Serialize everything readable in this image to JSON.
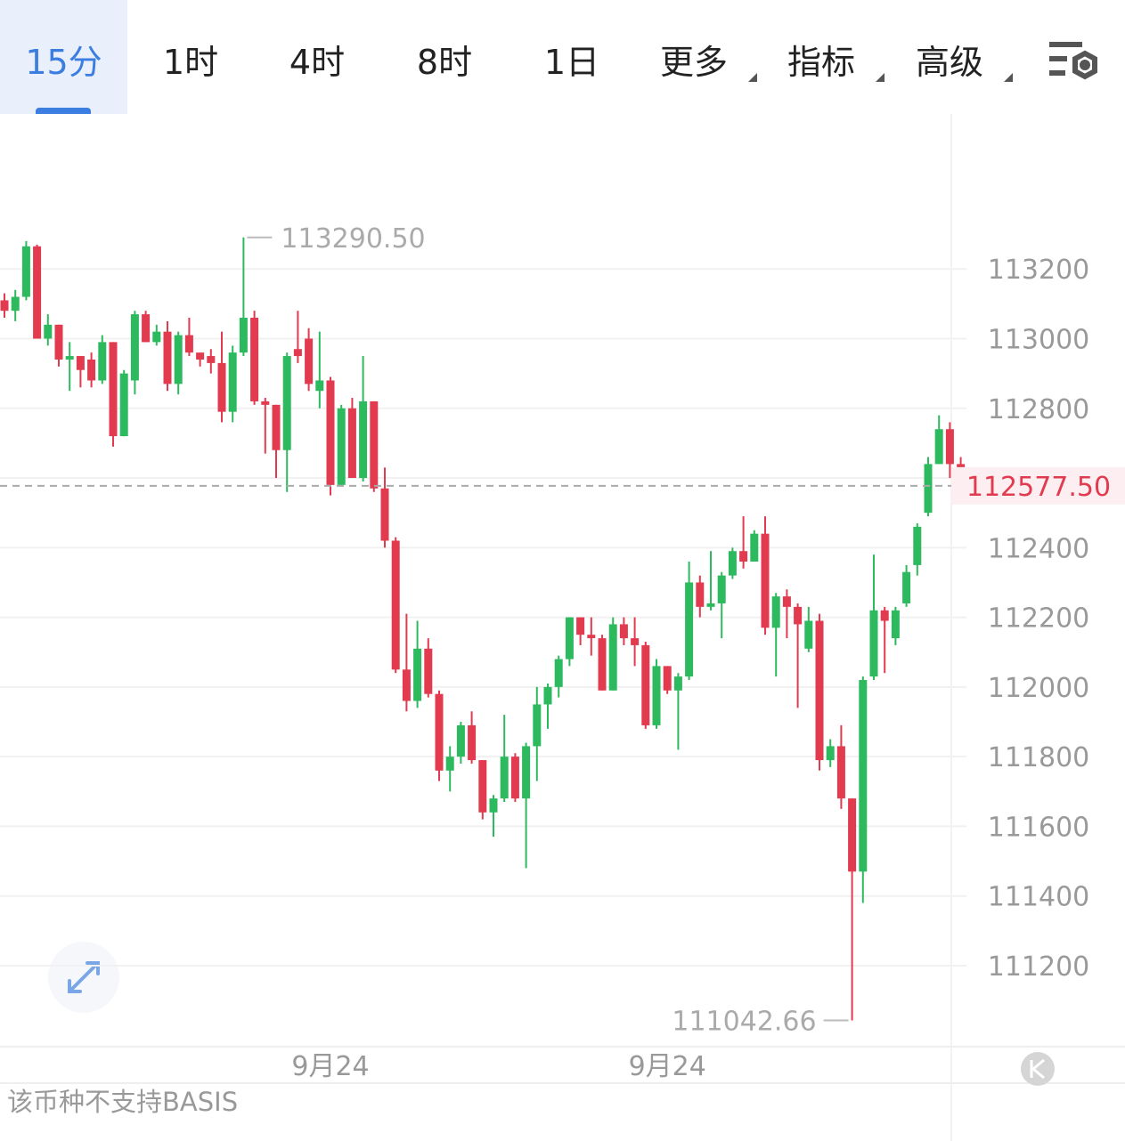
{
  "tabs": [
    "15分",
    "1时",
    "4时",
    "8时",
    "1日",
    "更多",
    "指标",
    "高级"
  ],
  "footer": "该币种不支持BASIS",
  "chart_data": {
    "type": "candlestick",
    "categories": [
      null,
      null,
      null,
      null,
      null,
      null,
      null,
      null,
      null,
      null,
      null,
      null,
      null,
      null,
      null,
      null,
      null,
      null,
      null,
      null,
      null,
      null,
      null,
      null,
      null,
      null,
      null,
      null,
      null,
      null,
      "9月24",
      null,
      null,
      null,
      null,
      null,
      null,
      null,
      null,
      null,
      null,
      null,
      null,
      null,
      null,
      null,
      null,
      null,
      null,
      null,
      null,
      null,
      null,
      null,
      null,
      null,
      null,
      null,
      null,
      null,
      null,
      "9月24",
      null,
      null,
      null,
      null,
      null,
      null,
      null,
      null,
      null,
      null,
      null,
      null,
      null,
      null,
      null,
      null,
      null,
      null,
      null,
      null,
      null,
      null,
      null,
      null,
      null,
      null,
      null
    ],
    "open": [
      113110,
      113080,
      113120,
      113265,
      113000,
      113040,
      112940,
      112950,
      112940,
      112880,
      112990,
      112720,
      112880,
      113070,
      112990,
      113020,
      112870,
      113010,
      112960,
      112950,
      112930,
      112790,
      112960,
      113060,
      112820,
      112810,
      112680,
      112970,
      113000,
      112850,
      112880,
      112580,
      112800,
      112600,
      112820,
      112570,
      112420,
      112050,
      111960,
      112110,
      111980,
      111760,
      111800,
      111890,
      111790,
      111640,
      111680,
      111800,
      111680,
      111830,
      111950,
      112000,
      112080,
      112200,
      112150,
      112140,
      111990,
      112180,
      112140,
      112120,
      111890,
      112060,
      111990,
      112030,
      112300,
      112230,
      112240,
      112320,
      112390,
      112360,
      112440,
      112170,
      112260,
      112230,
      112110,
      112190,
      111790,
      111830,
      111680,
      111470,
      112030,
      112220,
      112140,
      112240,
      112350,
      112500,
      112640,
      112740,
      112640
    ],
    "high": [
      113130,
      113140,
      113280,
      113270,
      113070,
      113040,
      112990,
      112950,
      112960,
      113010,
      112990,
      112910,
      113080,
      113080,
      113040,
      113050,
      113020,
      113060,
      112960,
      112970,
      113020,
      112980,
      113290.5,
      113080,
      112830,
      112810,
      112960,
      113080,
      113030,
      113020,
      112890,
      112810,
      112830,
      112950,
      112820,
      112630,
      112430,
      112210,
      112190,
      112140,
      111990,
      111830,
      111900,
      111930,
      111790,
      111690,
      111920,
      111810,
      111840,
      112000,
      112010,
      112090,
      112200,
      112200,
      112200,
      112150,
      112200,
      112200,
      112200,
      112130,
      112080,
      112060,
      112040,
      112360,
      112320,
      112390,
      112330,
      112400,
      112490,
      112450,
      112490,
      112270,
      112280,
      112240,
      112230,
      112210,
      111850,
      111890,
      111680,
      112030,
      112380,
      112230,
      112230,
      112350,
      112470,
      112660,
      112780,
      112760,
      112660
    ],
    "low": [
      113060,
      113050,
      113110,
      113000,
      112980,
      112920,
      112850,
      112860,
      112860,
      112870,
      112690,
      112720,
      112840,
      112990,
      112980,
      112850,
      112840,
      112950,
      112920,
      112900,
      112760,
      112760,
      112950,
      112810,
      112670,
      112600,
      112560,
      112930,
      112850,
      112800,
      112550,
      112580,
      112600,
      112590,
      112560,
      112400,
      112040,
      111930,
      111940,
      111970,
      111730,
      111700,
      111780,
      111780,
      111620,
      111570,
      111670,
      111670,
      111480,
      111730,
      111880,
      111970,
      112060,
      112120,
      112090,
      111990,
      111990,
      112120,
      112060,
      111880,
      111880,
      111980,
      111820,
      112020,
      112200,
      112220,
      112140,
      112310,
      112340,
      112360,
      112150,
      112030,
      112140,
      111940,
      112100,
      111760,
      111770,
      111650,
      111042.66,
      111380,
      112020,
      112040,
      112120,
      112230,
      112320,
      112490,
      112640,
      112600,
      112570
    ],
    "close": [
      113080,
      113120,
      113265,
      113000,
      113040,
      112940,
      112950,
      112910,
      112880,
      112990,
      112720,
      112900,
      113070,
      112990,
      113020,
      112870,
      113010,
      112960,
      112940,
      112930,
      112790,
      112960,
      113060,
      112820,
      112810,
      112680,
      112950,
      112950,
      112870,
      112880,
      112580,
      112800,
      112600,
      112820,
      112570,
      112420,
      112050,
      111960,
      112110,
      111980,
      111760,
      111800,
      111890,
      111790,
      111640,
      111680,
      111800,
      111680,
      111830,
      111950,
      112000,
      112080,
      112200,
      112150,
      112140,
      111990,
      112180,
      112140,
      112120,
      111890,
      112060,
      111990,
      112030,
      112300,
      112230,
      112240,
      112320,
      112390,
      112360,
      112440,
      112170,
      112260,
      112230,
      112180,
      112190,
      111790,
      111830,
      111680,
      111470,
      112020,
      112220,
      112190,
      112220,
      112330,
      112460,
      112640,
      112740,
      112640,
      112577.5
    ],
    "up_color": "#2dba5e",
    "down_color": "#e23a4e",
    "ylim": [
      110970,
      113640
    ],
    "yticks": [
      111200,
      111400,
      111600,
      111800,
      112000,
      112200,
      112400,
      112600,
      112800,
      113000,
      113200
    ],
    "grid": true,
    "annotations": [
      {
        "value": 113290.5,
        "label": "113290.50"
      },
      {
        "value": 111042.66,
        "label": "111042.66"
      }
    ],
    "last_price": {
      "value": 112577.5,
      "label": "112577.50"
    }
  }
}
